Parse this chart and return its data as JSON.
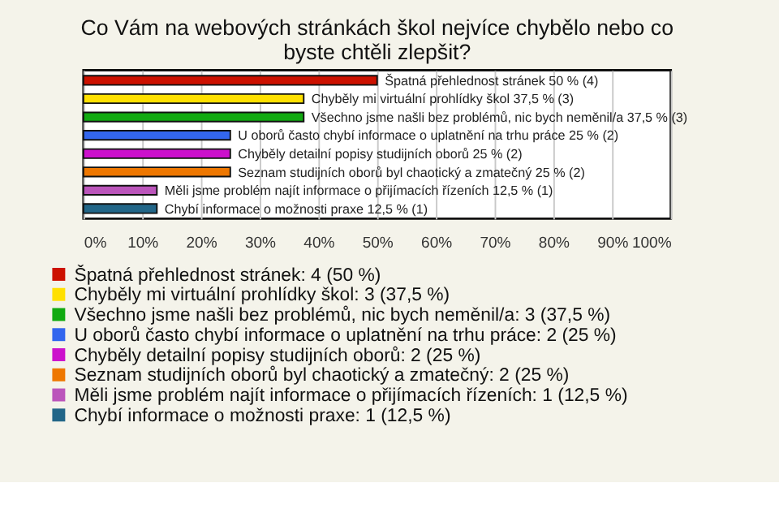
{
  "chart_data": {
    "type": "bar",
    "orientation": "horizontal",
    "title": "Co Vám na webových stránkách škol nejvíce chybělo nebo co byste chtěli zlepšit?",
    "categories": [
      null,
      null,
      null,
      null,
      null,
      null,
      null,
      null
    ],
    "series": [
      {
        "name": "Špatná přehlednost stránek: 4 (50 %)",
        "color": "#cc1100",
        "values": [
          50,
          null,
          null,
          null,
          null,
          null,
          null,
          null
        ],
        "value_labels": [
          "Špatná přehlednost stránek 50 % (4)",
          null,
          null,
          null,
          null,
          null,
          null,
          null
        ]
      },
      {
        "name": "Chyběly mi virtuální prohlídky škol: 3 (37,5 %)",
        "color": "#ffe000",
        "values": [
          null,
          37.5,
          null,
          null,
          null,
          null,
          null,
          null
        ],
        "value_labels": [
          null,
          "Chyběly mi virtuální prohlídky škol 37,5 % (3)",
          null,
          null,
          null,
          null,
          null,
          null
        ]
      },
      {
        "name": "Všechno jsme našli bez problémů, nic bych neměnil/a: 3 (37,5 %)",
        "color": "#11aa11",
        "values": [
          null,
          null,
          37.5,
          null,
          null,
          null,
          null,
          null
        ],
        "value_labels": [
          null,
          null,
          "Všechno jsme našli bez problémů, nic bych neměnil/a 37,5 % (3)",
          null,
          null,
          null,
          null,
          null
        ]
      },
      {
        "name": "U oborů často chybí informace o uplatnění na trhu práce: 2 (25 %)",
        "color": "#3366ee",
        "values": [
          null,
          null,
          null,
          25,
          null,
          null,
          null,
          null
        ],
        "value_labels": [
          null,
          null,
          null,
          "U oborů často chybí informace o uplatnění na trhu práce 25 % (2)",
          null,
          null,
          null,
          null
        ]
      },
      {
        "name": "Chyběly detailní popisy studijních oborů: 2 (25 %)",
        "color": "#cc11cc",
        "values": [
          null,
          null,
          null,
          null,
          25,
          null,
          null,
          null
        ],
        "value_labels": [
          null,
          null,
          null,
          null,
          "Chyběly detailní popisy studijních oborů 25 % (2)",
          null,
          null,
          null
        ]
      },
      {
        "name": "Seznam studijních oborů byl chaotický a zmatečný: 2 (25 %)",
        "color": "#ee7700",
        "values": [
          null,
          null,
          null,
          null,
          null,
          25,
          null,
          null
        ],
        "value_labels": [
          null,
          null,
          null,
          null,
          null,
          "Seznam studijních oborů byl chaotický a zmatečný 25 % (2)",
          null,
          null
        ]
      },
      {
        "name": "Měli jsme problém najít informace o přijímacích řízeních: 1 (12,5 %)",
        "color": "#bb55bb",
        "values": [
          null,
          null,
          null,
          null,
          null,
          null,
          12.5,
          null
        ],
        "value_labels": [
          null,
          null,
          null,
          null,
          null,
          null,
          "Měli jsme problém najít informace o přijímacích řízeních 12,5 % (1)",
          null
        ]
      },
      {
        "name": "Chybí informace o možnosti praxe: 1 (12,5 %)",
        "color": "#226688",
        "values": [
          null,
          null,
          null,
          null,
          null,
          null,
          null,
          12.5
        ],
        "value_labels": [
          null,
          null,
          null,
          null,
          null,
          null,
          null,
          "Chybí informace o možnosti praxe 12,5 % (1)"
        ]
      }
    ],
    "xlim": [
      0,
      100
    ],
    "xticks": [
      {
        "value": 0,
        "label": "0%"
      },
      {
        "value": 10,
        "label": "10%"
      },
      {
        "value": 20,
        "label": "20%"
      },
      {
        "value": 30,
        "label": "30%"
      },
      {
        "value": 40,
        "label": "40%"
      },
      {
        "value": 50,
        "label": "50%"
      },
      {
        "value": 60,
        "label": "60%"
      },
      {
        "value": 70,
        "label": "70%"
      },
      {
        "value": 80,
        "label": "80%"
      },
      {
        "value": 90,
        "label": "90%"
      },
      {
        "value": 100,
        "label": "100%"
      }
    ],
    "grid": "x",
    "legend": "bottom",
    "tick_labels": "x"
  }
}
